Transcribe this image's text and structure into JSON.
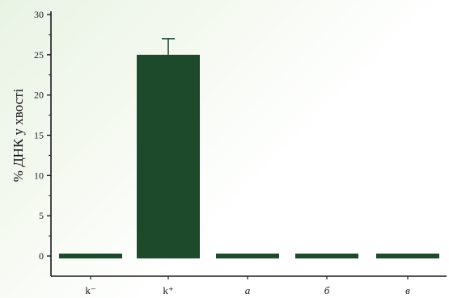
{
  "chart_data": {
    "type": "bar",
    "categories": [
      "k⁻",
      "k⁺",
      "а",
      "б",
      "в"
    ],
    "values": [
      0.3,
      25,
      0.3,
      0.3,
      0.3
    ],
    "errors": [
      0,
      2,
      0,
      0,
      0
    ],
    "title": "",
    "xlabel": "",
    "ylabel": "% ДНК у хвості",
    "ylim": [
      0,
      30
    ],
    "yticks": [
      0,
      5,
      10,
      15,
      20,
      25,
      30
    ],
    "grid": false,
    "legend": "none",
    "bar_color": "#1d4a2a",
    "axis_color": "#1a1a1a"
  }
}
